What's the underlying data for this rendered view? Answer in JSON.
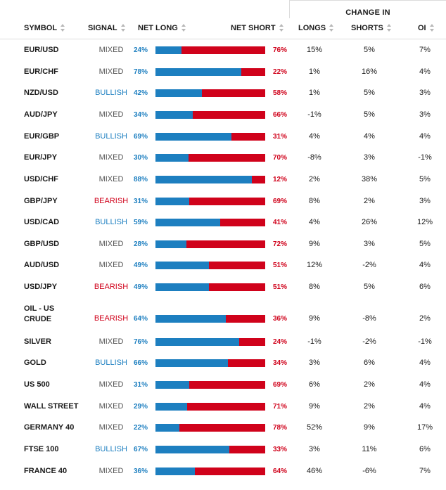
{
  "header": {
    "change_in": "CHANGE IN",
    "symbol": "SYMBOL",
    "signal": "SIGNAL",
    "net_long": "NET LONG",
    "net_short": "NET SHORT",
    "longs": "LONGS",
    "shorts": "SHORTS",
    "oi": "OI"
  },
  "colors": {
    "long": "#1d7fc0",
    "short": "#d0021b",
    "mixed": "#555555"
  },
  "rows": [
    {
      "symbol": "EUR/USD",
      "symbol2": "",
      "signal": "MIXED",
      "long": "24%",
      "short": "76%",
      "long_pct": 24,
      "longs": "15%",
      "shorts": "5%",
      "oi": "7%"
    },
    {
      "symbol": "EUR/CHF",
      "symbol2": "",
      "signal": "MIXED",
      "long": "78%",
      "short": "22%",
      "long_pct": 78,
      "longs": "1%",
      "shorts": "16%",
      "oi": "4%"
    },
    {
      "symbol": "NZD/USD",
      "symbol2": "",
      "signal": "BULLISH",
      "long": "42%",
      "short": "58%",
      "long_pct": 42,
      "longs": "1%",
      "shorts": "5%",
      "oi": "3%"
    },
    {
      "symbol": "AUD/JPY",
      "symbol2": "",
      "signal": "MIXED",
      "long": "34%",
      "short": "66%",
      "long_pct": 34,
      "longs": "-1%",
      "shorts": "5%",
      "oi": "3%"
    },
    {
      "symbol": "EUR/GBP",
      "symbol2": "",
      "signal": "BULLISH",
      "long": "69%",
      "short": "31%",
      "long_pct": 69,
      "longs": "4%",
      "shorts": "4%",
      "oi": "4%"
    },
    {
      "symbol": "EUR/JPY",
      "symbol2": "",
      "signal": "MIXED",
      "long": "30%",
      "short": "70%",
      "long_pct": 30,
      "longs": "-8%",
      "shorts": "3%",
      "oi": "-1%"
    },
    {
      "symbol": "USD/CHF",
      "symbol2": "",
      "signal": "MIXED",
      "long": "88%",
      "short": "12%",
      "long_pct": 88,
      "longs": "2%",
      "shorts": "38%",
      "oi": "5%"
    },
    {
      "symbol": "GBP/JPY",
      "symbol2": "",
      "signal": "BEARISH",
      "long": "31%",
      "short": "69%",
      "long_pct": 31,
      "longs": "8%",
      "shorts": "2%",
      "oi": "3%"
    },
    {
      "symbol": "USD/CAD",
      "symbol2": "",
      "signal": "BULLISH",
      "long": "59%",
      "short": "41%",
      "long_pct": 59,
      "longs": "4%",
      "shorts": "26%",
      "oi": "12%"
    },
    {
      "symbol": "GBP/USD",
      "symbol2": "",
      "signal": "MIXED",
      "long": "28%",
      "short": "72%",
      "long_pct": 28,
      "longs": "9%",
      "shorts": "3%",
      "oi": "5%"
    },
    {
      "symbol": "AUD/USD",
      "symbol2": "",
      "signal": "MIXED",
      "long": "49%",
      "short": "51%",
      "long_pct": 49,
      "longs": "12%",
      "shorts": "-2%",
      "oi": "4%"
    },
    {
      "symbol": "USD/JPY",
      "symbol2": "",
      "signal": "BEARISH",
      "long": "49%",
      "short": "51%",
      "long_pct": 49,
      "longs": "8%",
      "shorts": "5%",
      "oi": "6%"
    },
    {
      "symbol": "OIL - US",
      "symbol2": "CRUDE",
      "signal": "BEARISH",
      "long": "64%",
      "short": "36%",
      "long_pct": 64,
      "longs": "9%",
      "shorts": "-8%",
      "oi": "2%"
    },
    {
      "symbol": "SILVER",
      "symbol2": "",
      "signal": "MIXED",
      "long": "76%",
      "short": "24%",
      "long_pct": 76,
      "longs": "-1%",
      "shorts": "-2%",
      "oi": "-1%"
    },
    {
      "symbol": "GOLD",
      "symbol2": "",
      "signal": "BULLISH",
      "long": "66%",
      "short": "34%",
      "long_pct": 66,
      "longs": "3%",
      "shorts": "6%",
      "oi": "4%"
    },
    {
      "symbol": "US 500",
      "symbol2": "",
      "signal": "MIXED",
      "long": "31%",
      "short": "69%",
      "long_pct": 31,
      "longs": "6%",
      "shorts": "2%",
      "oi": "4%"
    },
    {
      "symbol": "WALL STREET",
      "symbol2": "",
      "signal": "MIXED",
      "long": "29%",
      "short": "71%",
      "long_pct": 29,
      "longs": "9%",
      "shorts": "2%",
      "oi": "4%"
    },
    {
      "symbol": "GERMANY 40",
      "symbol2": "",
      "signal": "MIXED",
      "long": "22%",
      "short": "78%",
      "long_pct": 22,
      "longs": "52%",
      "shorts": "9%",
      "oi": "17%"
    },
    {
      "symbol": "FTSE 100",
      "symbol2": "",
      "signal": "BULLISH",
      "long": "67%",
      "short": "33%",
      "long_pct": 67,
      "longs": "3%",
      "shorts": "11%",
      "oi": "6%"
    },
    {
      "symbol": "FRANCE 40",
      "symbol2": "",
      "signal": "MIXED",
      "long": "36%",
      "short": "64%",
      "long_pct": 36,
      "longs": "46%",
      "shorts": "-6%",
      "oi": "7%"
    }
  ]
}
